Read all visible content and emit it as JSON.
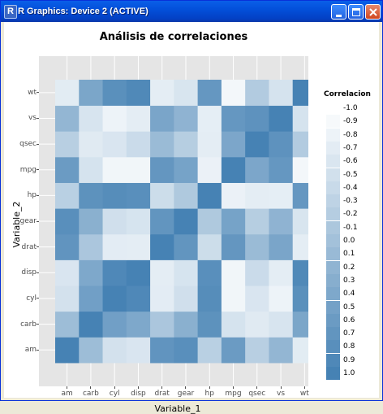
{
  "window": {
    "title": "R Graphics: Device 2 (ACTIVE)",
    "icon": "R",
    "controls": [
      "minimize-icon",
      "maximize-icon",
      "close-icon"
    ]
  },
  "chart_data": {
    "type": "heatmap",
    "title": "Análisis de correlaciones",
    "xlabel": "Variable_1",
    "ylabel": "Variable_2",
    "x": [
      "am",
      "carb",
      "cyl",
      "disp",
      "drat",
      "gear",
      "hp",
      "mpg",
      "qsec",
      "vs",
      "wt"
    ],
    "y": [
      "am",
      "carb",
      "cyl",
      "disp",
      "drat",
      "gear",
      "hp",
      "mpg",
      "qsec",
      "vs",
      "wt"
    ],
    "z": [
      [
        1.0,
        0.06,
        -0.52,
        -0.59,
        0.71,
        0.79,
        -0.24,
        0.6,
        -0.23,
        0.17,
        -0.69
      ],
      [
        0.06,
        1.0,
        0.53,
        0.39,
        -0.09,
        0.27,
        0.75,
        -0.55,
        -0.66,
        -0.57,
        0.43
      ],
      [
        -0.52,
        0.53,
        1.0,
        0.9,
        -0.7,
        -0.49,
        0.83,
        -0.85,
        -0.59,
        -0.81,
        0.78
      ],
      [
        -0.59,
        0.39,
        0.9,
        1.0,
        -0.71,
        -0.56,
        0.79,
        -0.85,
        -0.43,
        -0.71,
        0.89
      ],
      [
        0.71,
        -0.09,
        -0.7,
        -0.71,
        1.0,
        0.7,
        -0.45,
        0.68,
        0.09,
        0.44,
        -0.71
      ],
      [
        0.79,
        0.27,
        -0.49,
        -0.56,
        0.7,
        1.0,
        -0.13,
        0.48,
        -0.21,
        0.21,
        -0.58
      ],
      [
        -0.24,
        0.75,
        0.83,
        0.79,
        -0.45,
        -0.13,
        1.0,
        -0.78,
        -0.71,
        -0.72,
        0.66
      ],
      [
        0.6,
        -0.55,
        -0.85,
        -0.85,
        0.68,
        0.48,
        -0.78,
        1.0,
        0.42,
        0.66,
        -0.87
      ],
      [
        -0.23,
        -0.66,
        -0.59,
        -0.43,
        0.09,
        -0.21,
        -0.71,
        0.42,
        1.0,
        0.74,
        -0.17
      ],
      [
        0.17,
        -0.57,
        -0.81,
        -0.71,
        0.44,
        0.21,
        -0.72,
        0.66,
        0.74,
        1.0,
        -0.55
      ],
      [
        -0.69,
        0.43,
        0.78,
        0.89,
        -0.71,
        -0.58,
        0.66,
        -0.87,
        -0.17,
        -0.55,
        1.0
      ]
    ],
    "legend": {
      "title": "Correlacion",
      "position": "right",
      "values": [
        -1.0,
        -0.9,
        -0.8,
        -0.7,
        -0.6,
        -0.5,
        -0.4,
        -0.3,
        -0.2,
        -0.1,
        0.0,
        0.1,
        0.2,
        0.3,
        0.4,
        0.5,
        0.6,
        0.7,
        0.8,
        0.9,
        1.0
      ],
      "labels": [
        "-1.0",
        "-0.9",
        "-0.8",
        "-0.7",
        "-0.6",
        "-0.5",
        "-0.4",
        "-0.3",
        "-0.2",
        "-0.1",
        "0.0",
        "0.1",
        "0.2",
        "0.3",
        "0.4",
        "0.5",
        "0.6",
        "0.7",
        "0.8",
        "0.9",
        "1.0"
      ]
    },
    "colors": {
      "negative": "#FFFFFF",
      "positive": "#4682B4",
      "panel_background": "#E5E5E5",
      "plot_background": "#FFFFFF"
    },
    "grid": true
  }
}
